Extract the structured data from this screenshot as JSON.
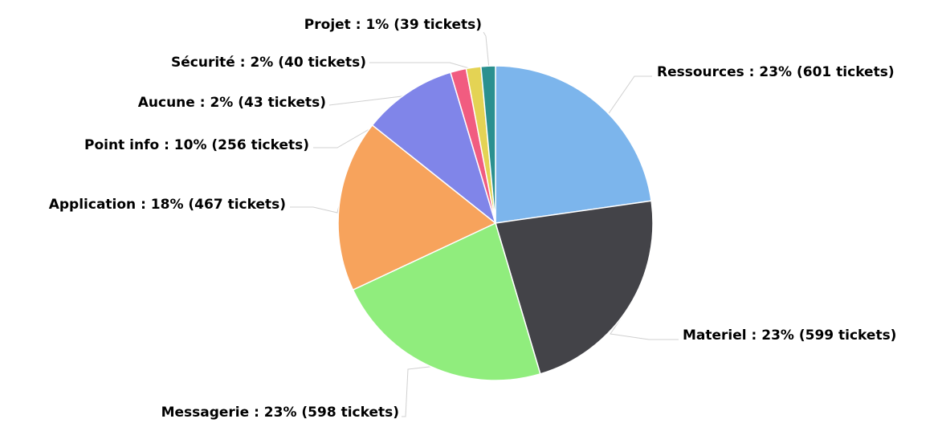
{
  "chart_data": {
    "type": "pie",
    "title": "",
    "start_angle_deg": 0,
    "direction": "clockwise",
    "slices": [
      {
        "name": "Ressources",
        "percent": 23,
        "tickets": 601,
        "color": "#7cb5ec",
        "label": "Ressources : 23% (601 tickets)"
      },
      {
        "name": "Materiel",
        "percent": 23,
        "tickets": 599,
        "color": "#434348",
        "label": "Materiel : 23% (599 tickets)"
      },
      {
        "name": "Messagerie",
        "percent": 23,
        "tickets": 598,
        "color": "#90ed7d",
        "label": "Messagerie : 23% (598 tickets)"
      },
      {
        "name": "Application",
        "percent": 18,
        "tickets": 467,
        "color": "#f7a35c",
        "label": "Application : 18% (467 tickets)"
      },
      {
        "name": "Point info",
        "percent": 10,
        "tickets": 256,
        "color": "#8085e9",
        "label": "Point info : 10% (256 tickets)"
      },
      {
        "name": "Aucune",
        "percent": 2,
        "tickets": 43,
        "color": "#f15c80",
        "label": "Aucune : 2% (43 tickets)"
      },
      {
        "name": "Sécurité",
        "percent": 2,
        "tickets": 40,
        "color": "#e4d354",
        "label": "Sécurité : 2% (40 tickets)"
      },
      {
        "name": "Projet",
        "percent": 1,
        "tickets": 39,
        "color": "#2b908f",
        "label": "Projet : 1% (39 tickets)"
      }
    ]
  }
}
